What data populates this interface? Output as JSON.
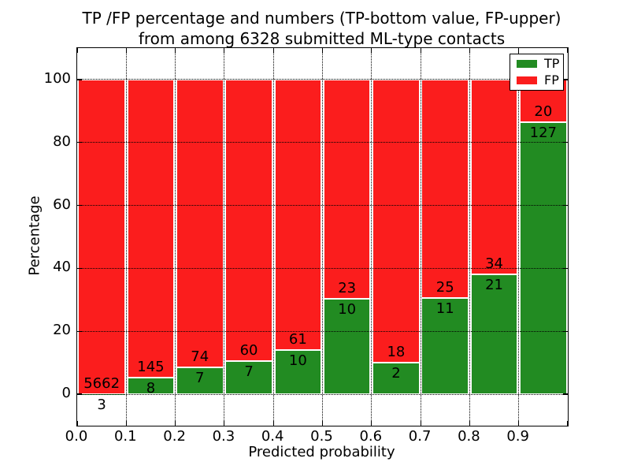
{
  "title": {
    "line1": "TP /FP percentage and numbers (TP-bottom value, FP-upper)",
    "line2": "from among 6328 submitted ML-type contacts"
  },
  "colors": {
    "tp_green": "#228b22",
    "fp_red": "#fb1d1d",
    "grid": "#000000",
    "background": "#ffffff"
  },
  "chart_data": {
    "type": "bar",
    "stacking": "percent",
    "title": "TP /FP percentage and numbers (TP-bottom value, FP-upper)\nfrom among 6328 submitted ML-type contacts",
    "xlabel": "Predicted probability",
    "ylabel": "Percentage",
    "xlim": [
      0.0,
      1.0
    ],
    "ylim": [
      -10,
      110
    ],
    "x_tick_labels": [
      "0.0",
      "0.1",
      "0.2",
      "0.3",
      "0.4",
      "0.5",
      "0.6",
      "0.7",
      "0.8",
      "0.9"
    ],
    "y_tick_values": [
      0,
      20,
      40,
      60,
      80,
      100
    ],
    "grid_style": "dotted",
    "total_contacts": 6328,
    "legend_position": "upper right",
    "legend": [
      {
        "label": "TP",
        "color": "#228b22"
      },
      {
        "label": "FP",
        "color": "#fb1d1d"
      }
    ],
    "bins": [
      {
        "x_start": 0.0,
        "x_end": 0.1,
        "tp": 3,
        "fp": 5662
      },
      {
        "x_start": 0.1,
        "x_end": 0.2,
        "tp": 8,
        "fp": 145
      },
      {
        "x_start": 0.2,
        "x_end": 0.3,
        "tp": 7,
        "fp": 74
      },
      {
        "x_start": 0.3,
        "x_end": 0.4,
        "tp": 7,
        "fp": 60
      },
      {
        "x_start": 0.4,
        "x_end": 0.5,
        "tp": 10,
        "fp": 61
      },
      {
        "x_start": 0.5,
        "x_end": 0.6,
        "tp": 10,
        "fp": 23
      },
      {
        "x_start": 0.6,
        "x_end": 0.7,
        "tp": 2,
        "fp": 18
      },
      {
        "x_start": 0.7,
        "x_end": 0.8,
        "tp": 11,
        "fp": 25
      },
      {
        "x_start": 0.8,
        "x_end": 0.9,
        "tp": 21,
        "fp": 34
      },
      {
        "x_start": 0.9,
        "x_end": 1.0,
        "tp": 127,
        "fp": 20
      }
    ]
  }
}
